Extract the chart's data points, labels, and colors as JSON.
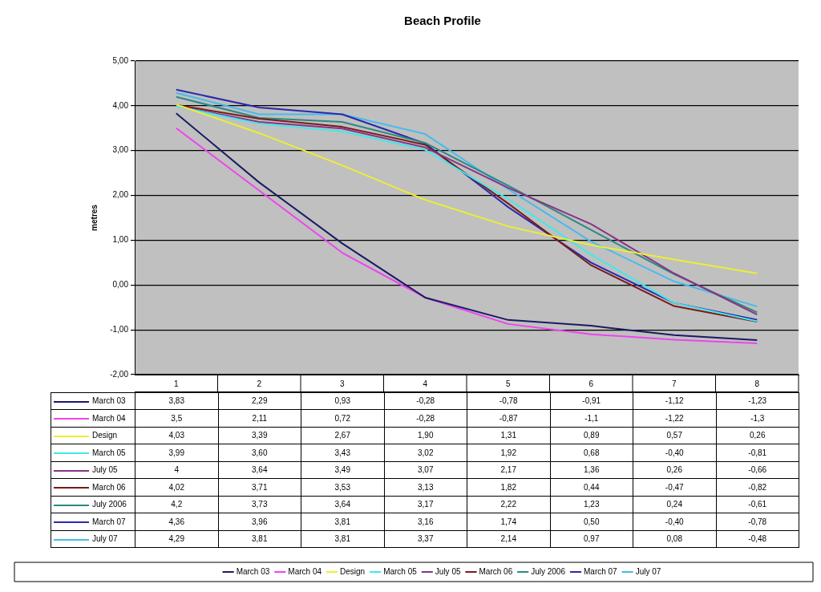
{
  "chart_data": {
    "type": "line",
    "title": "Beach Profile",
    "ylabel": "metres",
    "categories": [
      "1",
      "2",
      "3",
      "4",
      "5",
      "6",
      "7",
      "8"
    ],
    "ylim": [
      -2,
      5
    ],
    "yticks": [
      {
        "value": -2,
        "label": "-2,00"
      },
      {
        "value": -1,
        "label": "-1,00"
      },
      {
        "value": 0,
        "label": "0,00"
      },
      {
        "value": 1,
        "label": "1,00"
      },
      {
        "value": 2,
        "label": "2,00"
      },
      {
        "value": 3,
        "label": "3,00"
      },
      {
        "value": 4,
        "label": "4,00"
      },
      {
        "value": 5,
        "label": "5,00"
      }
    ],
    "grid": "y",
    "legend": "bottom",
    "marker": "none",
    "line_style": "solid",
    "series": [
      {
        "name": "March 03",
        "color": "#1a1a66",
        "values": [
          3.83,
          2.29,
          0.93,
          -0.28,
          -0.78,
          -0.91,
          -1.12,
          -1.23
        ],
        "value_labels": [
          "3,83",
          "2,29",
          "0,93",
          "-0,28",
          "-0,78",
          "-0,91",
          "-1,12",
          "-1,23"
        ]
      },
      {
        "name": "March 04",
        "color": "#ee44ee",
        "values": [
          3.5,
          2.11,
          0.72,
          -0.28,
          -0.87,
          -1.1,
          -1.22,
          -1.3
        ],
        "value_labels": [
          "3,5",
          "2,11",
          "0,72",
          "-0,28",
          "-0,87",
          "-1,1",
          "-1,22",
          "-1,3"
        ]
      },
      {
        "name": "Design",
        "color": "#eeee33",
        "values": [
          4.03,
          3.39,
          2.67,
          1.9,
          1.31,
          0.89,
          0.57,
          0.26
        ],
        "value_labels": [
          "4,03",
          "3,39",
          "2,67",
          "1,90",
          "1,31",
          "0,89",
          "0,57",
          "0,26"
        ]
      },
      {
        "name": "March 05",
        "color": "#44e8e8",
        "values": [
          3.99,
          3.6,
          3.43,
          3.02,
          1.92,
          0.68,
          -0.4,
          -0.81
        ],
        "value_labels": [
          "3,99",
          "3,60",
          "3,43",
          "3,02",
          "1,92",
          "0,68",
          "-0,40",
          "-0,81"
        ]
      },
      {
        "name": "July 05",
        "color": "#883388",
        "values": [
          4,
          3.64,
          3.49,
          3.07,
          2.17,
          1.36,
          0.26,
          -0.66
        ],
        "value_labels": [
          "4",
          "3,64",
          "3,49",
          "3,07",
          "2,17",
          "1,36",
          "0,26",
          "-0,66"
        ]
      },
      {
        "name": "March 06",
        "color": "#7a1a1a",
        "values": [
          4.02,
          3.71,
          3.53,
          3.13,
          1.82,
          0.44,
          -0.47,
          -0.82
        ],
        "value_labels": [
          "4,02",
          "3,71",
          "3,53",
          "3,13",
          "1,82",
          "0,44",
          "-0,47",
          "-0,82"
        ]
      },
      {
        "name": "July 2006",
        "color": "#2a8a80",
        "values": [
          4.2,
          3.73,
          3.64,
          3.17,
          2.22,
          1.23,
          0.24,
          -0.61
        ],
        "value_labels": [
          "4,2",
          "3,73",
          "3,64",
          "3,17",
          "2,22",
          "1,23",
          "0,24",
          "-0,61"
        ]
      },
      {
        "name": "March 07",
        "color": "#2a2aaa",
        "values": [
          4.36,
          3.96,
          3.81,
          3.16,
          1.74,
          0.5,
          -0.4,
          -0.78
        ],
        "value_labels": [
          "4,36",
          "3,96",
          "3,81",
          "3,16",
          "1,74",
          "0,50",
          "-0,40",
          "-0,78"
        ]
      },
      {
        "name": "July 07",
        "color": "#44bbee",
        "values": [
          4.29,
          3.81,
          3.81,
          3.37,
          2.14,
          0.97,
          0.08,
          -0.48
        ],
        "value_labels": [
          "4,29",
          "3,81",
          "3,81",
          "3,37",
          "2,14",
          "0,97",
          "0,08",
          "-0,48"
        ]
      }
    ]
  }
}
